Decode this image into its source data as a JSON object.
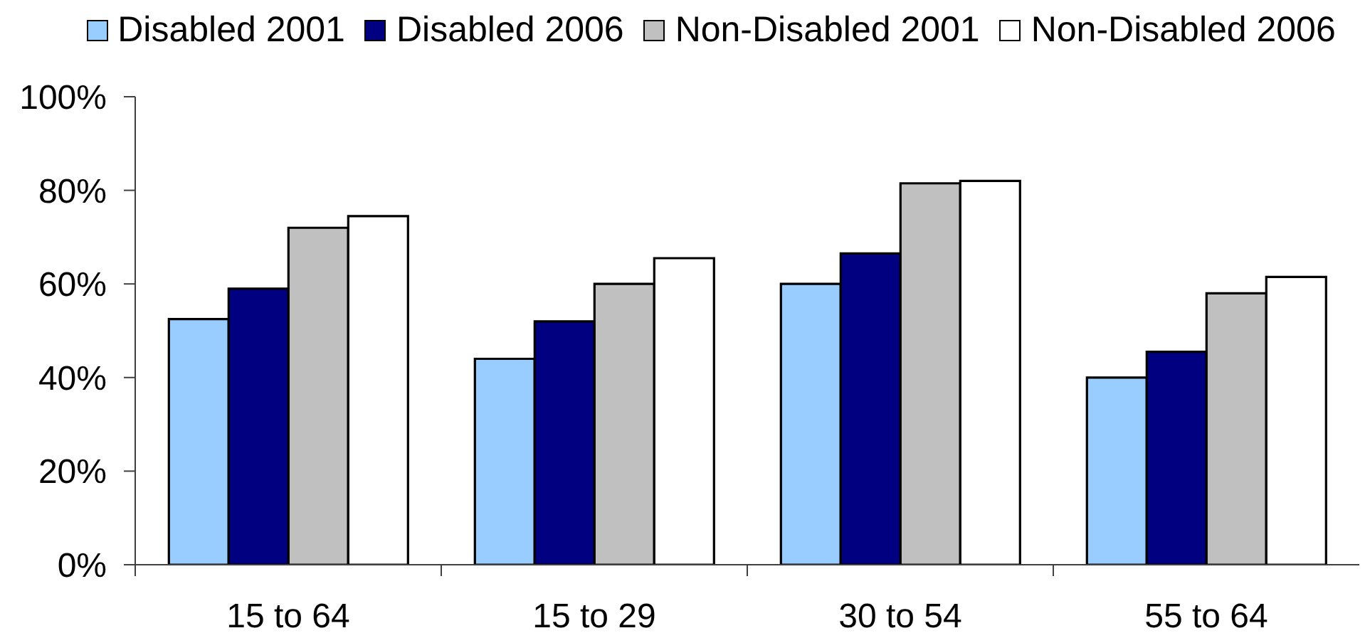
{
  "chart_data": {
    "type": "bar",
    "categories": [
      "15 to 64",
      "15 to 29",
      "30 to 54",
      "55 to 64"
    ],
    "series": [
      {
        "name": "Disabled 2001",
        "color": "#99ccff",
        "values": [
          52.5,
          44,
          60,
          40
        ]
      },
      {
        "name": "Disabled 2006",
        "color": "#000080",
        "values": [
          59,
          52,
          66.5,
          45.5
        ]
      },
      {
        "name": "Non-Disabled 2001",
        "color": "#c0c0c0",
        "values": [
          72,
          60,
          81.5,
          58
        ]
      },
      {
        "name": "Non-Disabled 2006",
        "color": "#ffffff",
        "values": [
          74.5,
          65.5,
          82,
          61.5
        ]
      }
    ],
    "ylim": [
      0,
      100
    ],
    "yticks": [
      {
        "value": 0,
        "label": "0%"
      },
      {
        "value": 20,
        "label": "20%"
      },
      {
        "value": 40,
        "label": "40%"
      },
      {
        "value": 60,
        "label": "60%"
      },
      {
        "value": 80,
        "label": "80%"
      },
      {
        "value": 100,
        "label": "100%"
      }
    ],
    "grid": false,
    "legend": "top"
  }
}
